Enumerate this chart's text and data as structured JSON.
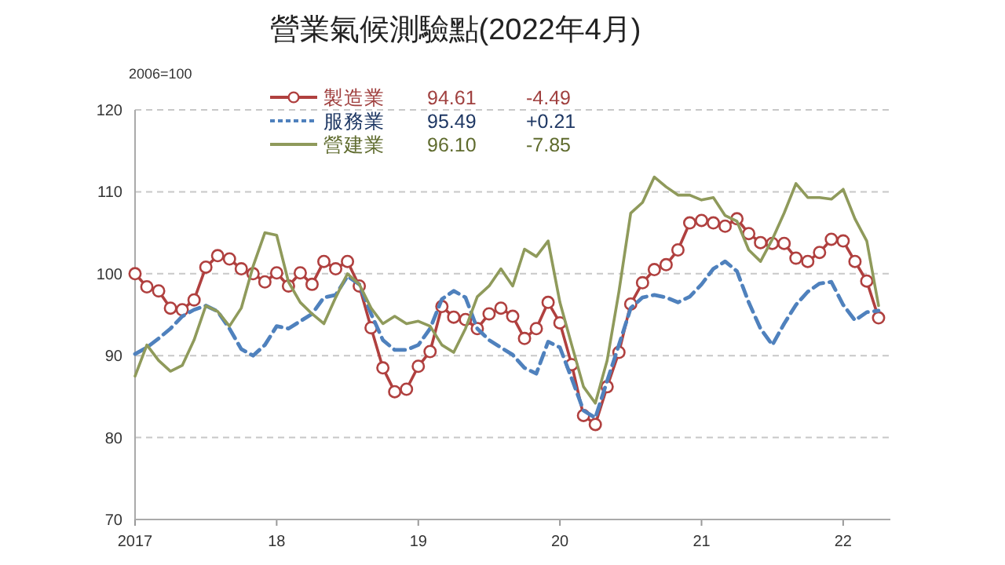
{
  "chart_data": {
    "type": "line",
    "title": "營業氣候測驗點(2022年4月)",
    "ylabel": "2006=100",
    "xlim": [
      "2017-01",
      "2022-05"
    ],
    "xticks": [
      {
        "value": "2017-01",
        "label": "2017"
      },
      {
        "value": "2018-01",
        "label": "18"
      },
      {
        "value": "2019-01",
        "label": "19"
      },
      {
        "value": "2020-01",
        "label": "20"
      },
      {
        "value": "2021-01",
        "label": "21"
      },
      {
        "value": "2022-01",
        "label": "22"
      }
    ],
    "ylim": [
      70,
      120
    ],
    "yticks": [
      70,
      80,
      90,
      100,
      110,
      120
    ],
    "grid": "y",
    "legend": "top",
    "annotations": [
      "94.61",
      "-4.49",
      "95.49",
      "+0.21",
      "96.10",
      "-7.85"
    ],
    "x": [
      "2017-01",
      "2017-02",
      "2017-03",
      "2017-04",
      "2017-05",
      "2017-06",
      "2017-07",
      "2017-08",
      "2017-09",
      "2017-10",
      "2017-11",
      "2017-12",
      "2018-01",
      "2018-02",
      "2018-03",
      "2018-04",
      "2018-05",
      "2018-06",
      "2018-07",
      "2018-08",
      "2018-09",
      "2018-10",
      "2018-11",
      "2018-12",
      "2019-01",
      "2019-02",
      "2019-03",
      "2019-04",
      "2019-05",
      "2019-06",
      "2019-07",
      "2019-08",
      "2019-09",
      "2019-10",
      "2019-11",
      "2019-12",
      "2020-01",
      "2020-02",
      "2020-03",
      "2020-04",
      "2020-05",
      "2020-06",
      "2020-07",
      "2020-08",
      "2020-09",
      "2020-10",
      "2020-11",
      "2020-12",
      "2021-01",
      "2021-02",
      "2021-03",
      "2021-04",
      "2021-05",
      "2021-06",
      "2021-07",
      "2021-08",
      "2021-09",
      "2021-10",
      "2021-11",
      "2021-12",
      "2022-01",
      "2022-02",
      "2022-03",
      "2022-04"
    ],
    "series": [
      {
        "name": "製造業",
        "color": "#b0403f",
        "marker": "circle",
        "line_style": "solid",
        "values": [
          100.0,
          98.4,
          97.9,
          95.8,
          95.6,
          96.8,
          100.8,
          102.2,
          101.8,
          100.6,
          100.0,
          99.0,
          100.1,
          98.5,
          100.1,
          98.7,
          101.5,
          100.6,
          101.5,
          98.5,
          93.4,
          88.5,
          85.6,
          85.9,
          88.7,
          90.5,
          96.0,
          94.7,
          94.4,
          93.3,
          95.1,
          95.8,
          94.8,
          92.1,
          93.3,
          96.5,
          94.0,
          88.9,
          82.7,
          81.6,
          86.2,
          90.4,
          96.3,
          98.9,
          100.5,
          101.1,
          102.9,
          106.2,
          106.5,
          106.2,
          105.8,
          106.7,
          104.9,
          103.8,
          103.7,
          103.7,
          101.9,
          101.5,
          102.6,
          104.2,
          104.0,
          101.5,
          99.1,
          94.61
        ]
      },
      {
        "name": "服務業",
        "color": "#4f81bd",
        "marker": "none",
        "line_style": "dashed",
        "values": [
          90.2,
          91.0,
          92.1,
          93.3,
          94.8,
          95.6,
          96.1,
          95.4,
          93.3,
          90.8,
          90.0,
          91.3,
          93.6,
          93.3,
          94.2,
          95.1,
          97.1,
          97.4,
          99.7,
          98.7,
          95.1,
          91.9,
          90.7,
          90.7,
          91.3,
          93.3,
          96.9,
          97.9,
          97.1,
          93.3,
          91.9,
          91.0,
          90.1,
          88.5,
          87.8,
          91.7,
          91.0,
          87.2,
          83.3,
          82.4,
          86.9,
          91.3,
          95.8,
          97.1,
          97.4,
          97.1,
          96.5,
          97.2,
          98.7,
          100.6,
          101.5,
          100.3,
          96.5,
          93.3,
          91.3,
          93.9,
          96.2,
          97.8,
          98.8,
          99.0,
          96.2,
          94.3,
          95.3,
          95.49
        ]
      },
      {
        "name": "營建業",
        "color": "#8f9a5b",
        "marker": "none",
        "line_style": "solid",
        "values": [
          87.5,
          91.3,
          89.4,
          88.1,
          88.8,
          91.9,
          96.1,
          95.4,
          93.6,
          95.8,
          100.9,
          105.0,
          104.7,
          99.0,
          96.5,
          95.1,
          93.9,
          97.1,
          100.0,
          98.7,
          95.8,
          93.9,
          94.8,
          93.9,
          94.2,
          93.6,
          91.3,
          90.4,
          93.3,
          97.2,
          98.5,
          100.6,
          98.5,
          103.0,
          102.1,
          104.0,
          96.5,
          91.3,
          86.2,
          84.2,
          89.4,
          97.8,
          107.4,
          108.7,
          111.8,
          110.6,
          109.6,
          109.6,
          109.0,
          109.3,
          107.1,
          106.4,
          102.9,
          101.5,
          104.2,
          107.4,
          111.0,
          109.3,
          109.3,
          109.1,
          110.3,
          106.7,
          104.0,
          96.1
        ]
      }
    ]
  }
}
